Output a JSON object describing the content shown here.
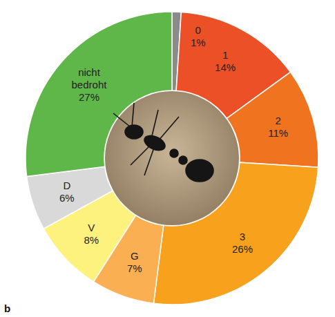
{
  "chart_data": {
    "type": "pie",
    "panel_label": "b",
    "categories": [
      "0",
      "1",
      "2",
      "3",
      "G",
      "V",
      "D",
      "nicht bedroht"
    ],
    "values": [
      1,
      14,
      11,
      26,
      7,
      8,
      6,
      27
    ],
    "value_labels": [
      "1%",
      "14%",
      "11%",
      "26%",
      "7%",
      "8%",
      "6%",
      "27%"
    ],
    "colors": [
      "#8a8a8a",
      "#eb5026",
      "#f0731f",
      "#f8a11d",
      "#fab052",
      "#fdf27d",
      "#d9d9d9",
      "#5fb74a"
    ],
    "data_labels": true
  }
}
